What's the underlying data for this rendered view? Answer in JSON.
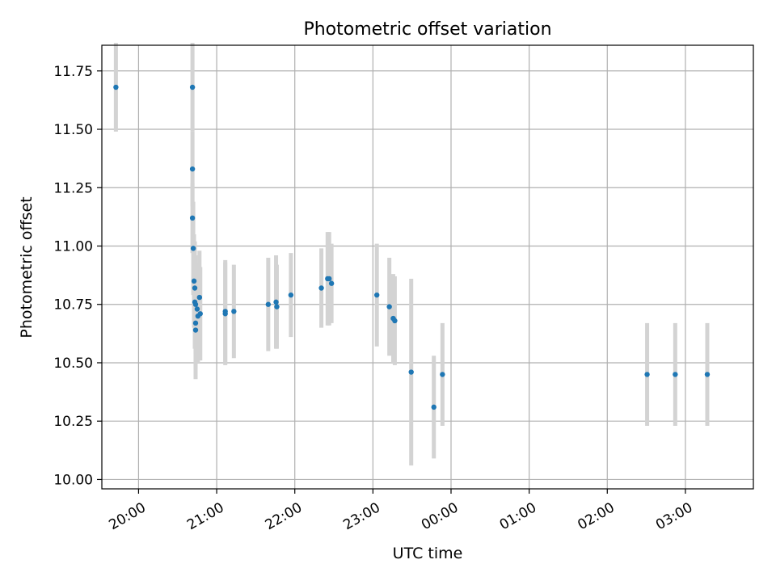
{
  "chart_data": {
    "type": "scatter",
    "title": "Photometric offset variation",
    "xlabel": "UTC time",
    "ylabel": "Photometric offset",
    "x_axis_unit": "hours after 19:00 UTC (wrapping past midnight)",
    "xlim": [
      0.53,
      8.87
    ],
    "ylim": [
      9.96,
      11.86
    ],
    "x_ticks": [
      {
        "h": 1,
        "label": "20:00"
      },
      {
        "h": 2,
        "label": "21:00"
      },
      {
        "h": 3,
        "label": "22:00"
      },
      {
        "h": 4,
        "label": "23:00"
      },
      {
        "h": 5,
        "label": "00:00"
      },
      {
        "h": 6,
        "label": "01:00"
      },
      {
        "h": 7,
        "label": "02:00"
      },
      {
        "h": 8,
        "label": "03:00"
      }
    ],
    "y_ticks": [
      {
        "v": 10.0,
        "label": "10.00"
      },
      {
        "v": 10.25,
        "label": "10.25"
      },
      {
        "v": 10.5,
        "label": "10.50"
      },
      {
        "v": 10.75,
        "label": "10.75"
      },
      {
        "v": 11.0,
        "label": "11.00"
      },
      {
        "v": 11.25,
        "label": "11.25"
      },
      {
        "v": 11.5,
        "label": "11.50"
      },
      {
        "v": 11.75,
        "label": "11.75"
      }
    ],
    "grid": true,
    "point_color": "#1f77b4",
    "errorbar_color": "#d3d3d3",
    "points": [
      {
        "t": "19:42",
        "h": 0.71,
        "y": 11.68,
        "err": 0.19
      },
      {
        "t": "20:41",
        "h": 1.69,
        "y": 11.68,
        "err": 0.19
      },
      {
        "t": "20:41",
        "h": 1.69,
        "y": 11.33,
        "err": 0.16
      },
      {
        "t": "20:41",
        "h": 1.69,
        "y": 11.12,
        "err": 0.15
      },
      {
        "t": "20:42",
        "h": 1.7,
        "y": 10.99,
        "err": 0.2
      },
      {
        "t": "20:43",
        "h": 1.71,
        "y": 10.85,
        "err": 0.2
      },
      {
        "t": "20:43",
        "h": 1.72,
        "y": 10.82,
        "err": 0.2
      },
      {
        "t": "20:43",
        "h": 1.72,
        "y": 10.76,
        "err": 0.2
      },
      {
        "t": "20:44",
        "h": 1.73,
        "y": 10.75,
        "err": 0.21
      },
      {
        "t": "20:44",
        "h": 1.73,
        "y": 10.67,
        "err": 0.2
      },
      {
        "t": "20:44",
        "h": 1.73,
        "y": 10.64,
        "err": 0.21
      },
      {
        "t": "20:45",
        "h": 1.75,
        "y": 10.73,
        "err": 0.2
      },
      {
        "t": "20:46",
        "h": 1.76,
        "y": 10.7,
        "err": 0.2
      },
      {
        "t": "20:47",
        "h": 1.78,
        "y": 10.78,
        "err": 0.2
      },
      {
        "t": "20:48",
        "h": 1.79,
        "y": 10.71,
        "err": 0.2
      },
      {
        "t": "21:07",
        "h": 2.11,
        "y": 10.72,
        "err": 0.22
      },
      {
        "t": "21:07",
        "h": 2.11,
        "y": 10.71,
        "err": 0.22
      },
      {
        "t": "21:13",
        "h": 2.22,
        "y": 10.72,
        "err": 0.2
      },
      {
        "t": "21:40",
        "h": 2.66,
        "y": 10.75,
        "err": 0.2
      },
      {
        "t": "21:46",
        "h": 2.76,
        "y": 10.76,
        "err": 0.2
      },
      {
        "t": "21:46",
        "h": 2.77,
        "y": 10.74,
        "err": 0.18
      },
      {
        "t": "21:57",
        "h": 2.95,
        "y": 10.79,
        "err": 0.18
      },
      {
        "t": "22:20",
        "h": 3.34,
        "y": 10.82,
        "err": 0.17
      },
      {
        "t": "22:25",
        "h": 3.42,
        "y": 10.86,
        "err": 0.2
      },
      {
        "t": "22:26",
        "h": 3.44,
        "y": 10.86,
        "err": 0.2
      },
      {
        "t": "22:28",
        "h": 3.47,
        "y": 10.84,
        "err": 0.17
      },
      {
        "t": "23:03",
        "h": 4.05,
        "y": 10.79,
        "err": 0.22
      },
      {
        "t": "23:12",
        "h": 4.21,
        "y": 10.74,
        "err": 0.21
      },
      {
        "t": "23:15",
        "h": 4.26,
        "y": 10.69,
        "err": 0.19
      },
      {
        "t": "23:17",
        "h": 4.28,
        "y": 10.68,
        "err": 0.19
      },
      {
        "t": "23:29",
        "h": 4.49,
        "y": 10.46,
        "err": 0.4
      },
      {
        "t": "23:47",
        "h": 4.78,
        "y": 10.31,
        "err": 0.22
      },
      {
        "t": "23:53",
        "h": 4.89,
        "y": 10.45,
        "err": 0.22
      },
      {
        "t": "02:30",
        "h": 7.51,
        "y": 10.45,
        "err": 0.22
      },
      {
        "t": "02:52",
        "h": 7.87,
        "y": 10.45,
        "err": 0.22
      },
      {
        "t": "03:17",
        "h": 8.28,
        "y": 10.45,
        "err": 0.22
      }
    ]
  }
}
